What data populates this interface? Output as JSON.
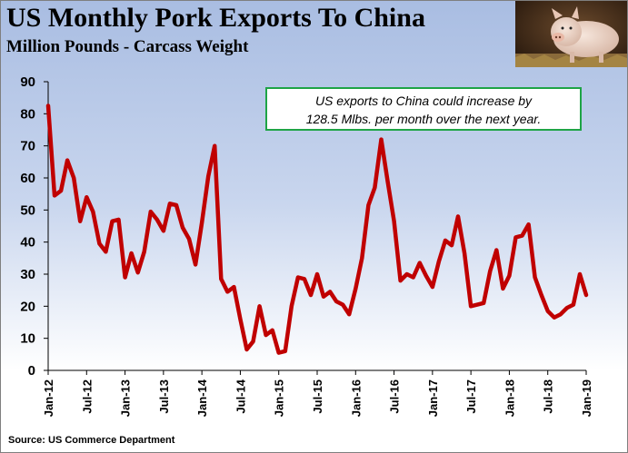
{
  "header": {
    "title": "US Monthly Pork Exports To China",
    "subtitle": "Million Pounds - Carcass Weight"
  },
  "footer": {
    "source": "Source: US Commerce Department"
  },
  "annotation": {
    "line1": "US exports to China could increase by",
    "line2": "128.5 Mlbs. per month over the next year."
  },
  "colors": {
    "series": "#c00000",
    "annotation_border": "#1ea446",
    "axis": "#000000"
  },
  "chart_data": {
    "type": "line",
    "title": "US Monthly Pork Exports To China",
    "subtitle": "Million Pounds - Carcass Weight",
    "xlabel": "",
    "ylabel": "",
    "ylim": [
      0,
      90
    ],
    "yticks": [
      0,
      10,
      20,
      30,
      40,
      50,
      60,
      70,
      80,
      90
    ],
    "xticks": [
      "Jan-12",
      "Jul-12",
      "Jan-13",
      "Jul-13",
      "Jan-14",
      "Jul-14",
      "Jan-15",
      "Jul-15",
      "Jan-16",
      "Jul-16",
      "Jan-17",
      "Jul-17",
      "Jan-18",
      "Jul-18",
      "Jan-19"
    ],
    "grid": false,
    "legend": "none",
    "x_start": "Jan-12",
    "x_end": "Jan-19",
    "series": [
      {
        "values": [
          82.5,
          54.5,
          56,
          65.5,
          60,
          46.5,
          54,
          49.5,
          39.5,
          37,
          46.5,
          47,
          29,
          36.5,
          30.5,
          37,
          49.5,
          47,
          43.5,
          52,
          51.5,
          44.5,
          41,
          33,
          46,
          60.5,
          70,
          28.5,
          24.5,
          26,
          16,
          6.5,
          9,
          20,
          11,
          12.5,
          5.5,
          6,
          20,
          29,
          28.5,
          23.5,
          30,
          23,
          24.5,
          21.5,
          20.5,
          17.5,
          25.5,
          35,
          51.5,
          57,
          72,
          59,
          46.5,
          28,
          30,
          29,
          33.5,
          29.5,
          26,
          34,
          40.5,
          39,
          48,
          36.5,
          20,
          20.5,
          21,
          31,
          37.5,
          25.5,
          29.5,
          41.5,
          42,
          45.5,
          29,
          23.5,
          18.5,
          16.5,
          17.5,
          19.5,
          20.5,
          30,
          23.5
        ]
      }
    ]
  }
}
